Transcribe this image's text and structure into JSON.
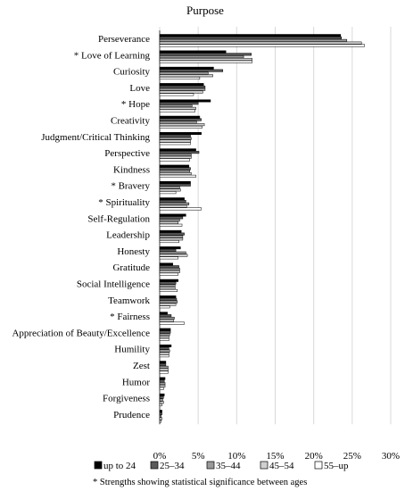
{
  "chart_data": {
    "type": "bar",
    "orientation": "horizontal",
    "title": "Purpose",
    "categories": [
      "Perseverance",
      "* Love of Learning",
      "Curiosity",
      "Love",
      "* Hope",
      "Creativity",
      "Judgment/Critical Thinking",
      "Perspective",
      "Kindness",
      "* Bravery",
      "* Spirituality",
      "Self-Regulation",
      "Leadership",
      "Honesty",
      "Gratitude",
      "Social Intelligence",
      "Teamwork",
      "* Fairness",
      "Appreciation of Beauty/Excellence",
      "Humility",
      "Zest",
      "Humor",
      "Forgiveness",
      "Prudence"
    ],
    "series": [
      {
        "name": "up to 24",
        "color": "#000000",
        "values": [
          23.5,
          8.6,
          7.0,
          5.7,
          6.6,
          5.2,
          5.4,
          4.7,
          3.8,
          4.0,
          3.2,
          3.4,
          2.8,
          2.7,
          1.7,
          2.4,
          2.1,
          1.0,
          1.4,
          1.5,
          0.8,
          0.7,
          0.6,
          0.3
        ]
      },
      {
        "name": "25–34",
        "color": "#5a5a5a",
        "values": [
          23.6,
          11.9,
          8.2,
          5.9,
          5.0,
          5.4,
          4.0,
          5.1,
          4.0,
          4.0,
          3.4,
          3.0,
          3.2,
          2.1,
          2.5,
          2.1,
          2.2,
          1.5,
          1.4,
          1.2,
          0.8,
          0.6,
          0.5,
          0.3
        ]
      },
      {
        "name": "35–44",
        "color": "#9a9a9a",
        "values": [
          24.3,
          10.9,
          6.3,
          5.9,
          4.2,
          4.8,
          4.1,
          4.1,
          3.9,
          2.6,
          3.8,
          2.6,
          3.0,
          3.4,
          2.6,
          2.0,
          2.3,
          1.9,
          1.3,
          1.3,
          1.1,
          0.7,
          0.4,
          0.2
        ]
      },
      {
        "name": "45–54",
        "color": "#d0d0d0",
        "values": [
          26.2,
          12.0,
          6.9,
          5.6,
          4.7,
          5.8,
          4.0,
          4.1,
          4.1,
          2.7,
          3.5,
          2.4,
          3.0,
          3.6,
          2.6,
          2.0,
          2.1,
          1.8,
          1.2,
          1.2,
          1.1,
          0.7,
          0.5,
          0.3
        ]
      },
      {
        "name": "55–up",
        "color": "#ffffff",
        "values": [
          26.6,
          12.0,
          5.2,
          4.4,
          4.6,
          5.5,
          4.0,
          3.9,
          4.7,
          2.1,
          5.4,
          2.9,
          2.5,
          2.4,
          2.4,
          2.3,
          1.3,
          3.2,
          1.2,
          1.2,
          1.1,
          0.5,
          0.3,
          0.2
        ]
      }
    ],
    "xlim": [
      0,
      30
    ],
    "xticks": [
      "0%",
      "5%",
      "10%",
      "15%",
      "20%",
      "25%",
      "30%"
    ],
    "grid": "vertical",
    "legend_position": "bottom"
  },
  "footnote": "* Strengths showing statistical significance between ages"
}
